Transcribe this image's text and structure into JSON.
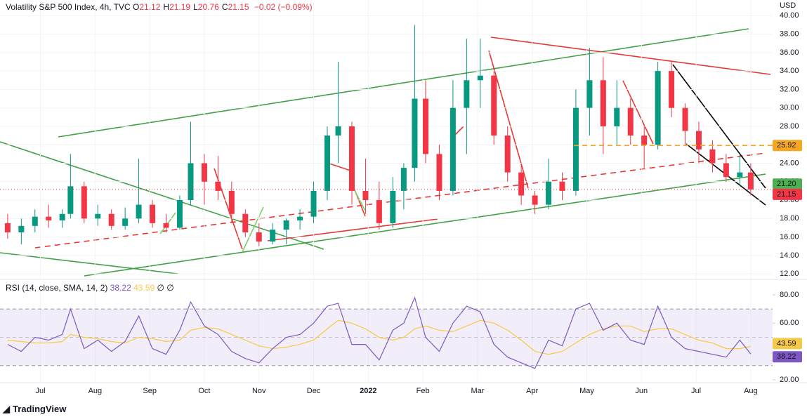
{
  "header": {
    "symbol": "Volatility S&P 500 Index, 4h, TVC",
    "ohlc": [
      {
        "label": "O",
        "value": 21.12
      },
      {
        "label": "H",
        "value": 21.19
      },
      {
        "label": "L",
        "value": 20.76
      },
      {
        "label": "C",
        "value": 21.15
      }
    ],
    "change": "−0.02 (−0.09%)"
  },
  "chart_data": [
    {
      "type": "candlestick",
      "currency": "USD",
      "up_color": "#089981",
      "down_color": "#f23645",
      "x": [
        -0.6,
        -0.35,
        -0.1,
        0.15,
        0.4,
        0.55,
        0.8,
        1.05,
        1.3,
        1.55,
        1.8,
        2.05,
        2.3,
        2.55,
        2.75,
        3.0,
        3.25,
        3.5,
        3.75,
        4.0,
        4.25,
        4.5,
        4.75,
        5.0,
        5.25,
        5.45,
        5.7,
        5.95,
        6.2,
        6.45,
        6.65,
        6.85,
        7.05,
        7.3,
        7.55,
        7.8,
        8.05,
        8.3,
        8.55,
        8.8,
        9.05,
        9.3,
        9.55,
        9.8,
        10.05,
        10.3,
        10.55,
        10.8,
        11.05,
        11.3,
        11.55,
        11.8,
        12.05,
        12.3,
        12.55,
        12.8,
        13.0
      ],
      "open": [
        17.5,
        16.5,
        17.2,
        18.2,
        17.8,
        18.5,
        21.5,
        18,
        18.5,
        17.2,
        18,
        19.5,
        17.5,
        17,
        20,
        24,
        22,
        21,
        18.5,
        16.5,
        15.5,
        16.8,
        17.8,
        18.2,
        21,
        27,
        28,
        21,
        20,
        17.5,
        21,
        23.5,
        31,
        25,
        21,
        30,
        33,
        33.5,
        27,
        23,
        20.5,
        19.5,
        22,
        21,
        30,
        33,
        28,
        30,
        27,
        26,
        34,
        30,
        27.5,
        25.5,
        24,
        22.5,
        23
      ],
      "high": [
        18.5,
        18,
        19,
        19.5,
        19,
        25,
        22,
        19.5,
        19,
        19.2,
        24.5,
        20,
        18.5,
        20.5,
        28.5,
        25,
        24.8,
        22,
        19,
        17.5,
        17.5,
        18,
        19,
        22,
        28,
        35,
        28.5,
        24.5,
        22,
        22.5,
        24,
        39,
        33,
        26,
        33,
        37.5,
        37.5,
        34,
        28,
        24,
        21,
        24.5,
        23,
        32,
        36.5,
        35.5,
        33,
        31,
        28,
        35,
        35,
        30.5,
        28.5,
        26.5,
        25,
        25,
        24
      ],
      "low": [
        15.8,
        15.2,
        16.5,
        17,
        17,
        18,
        17.5,
        17.2,
        16.8,
        16.8,
        17.5,
        17,
        16.5,
        16.8,
        19.5,
        19.5,
        20,
        17.5,
        16,
        15,
        15.2,
        15.2,
        16.8,
        17.5,
        20,
        24,
        19.5,
        18.5,
        16.8,
        17,
        19,
        22,
        24,
        20,
        20.5,
        25,
        30,
        26,
        22,
        19.5,
        18.5,
        19,
        20,
        20.5,
        27,
        25,
        26,
        26,
        23.5,
        25.5,
        29,
        26,
        24,
        23,
        22,
        21.5,
        20.5
      ],
      "close": [
        16.5,
        17.2,
        18.2,
        17.8,
        18.5,
        21.5,
        18,
        18.5,
        17.2,
        18,
        19.5,
        17.5,
        17,
        20,
        24,
        22,
        21,
        18.5,
        16.5,
        15.5,
        16.8,
        17.8,
        18.2,
        21,
        27,
        28,
        21,
        20,
        17.5,
        21,
        23.5,
        31,
        25,
        21,
        30,
        33,
        33.5,
        27,
        23,
        20.5,
        19.5,
        22,
        21,
        30,
        33,
        28,
        30,
        27,
        26,
        34,
        30,
        27.5,
        25.5,
        24,
        22.5,
        23,
        21.15
      ],
      "xlim": [
        -0.74,
        13.4
      ],
      "xticks": [
        {
          "value": 0,
          "label": "Jul"
        },
        {
          "value": 1,
          "label": "Aug"
        },
        {
          "value": 2,
          "label": "Sep"
        },
        {
          "value": 3,
          "label": "Oct"
        },
        {
          "value": 4,
          "label": "Nov"
        },
        {
          "value": 5,
          "label": "Dec"
        },
        {
          "value": 6,
          "label": "2022"
        },
        {
          "value": 7,
          "label": "Feb"
        },
        {
          "value": 8,
          "label": "Mar"
        },
        {
          "value": 9,
          "label": "Apr"
        },
        {
          "value": 10,
          "label": "May"
        },
        {
          "value": 11,
          "label": "Jun"
        },
        {
          "value": 12,
          "label": "Jul"
        },
        {
          "value": 13,
          "label": "Aug"
        }
      ],
      "ylim": [
        11.4,
        41.7
      ],
      "yticks": [
        {
          "value": 12,
          "label": "12.00"
        },
        {
          "value": 14,
          "label": "14.00"
        },
        {
          "value": 16,
          "label": "16.00"
        },
        {
          "value": 18,
          "label": "18.00"
        },
        {
          "value": 20,
          "label": "20.00"
        },
        {
          "value": 22,
          "label": "22.00"
        },
        {
          "value": 24,
          "label": "24.00"
        },
        {
          "value": 26,
          "label": "26.00"
        },
        {
          "value": 28,
          "label": "28.00"
        },
        {
          "value": 30,
          "label": "30.00"
        },
        {
          "value": 32,
          "label": "32.00"
        },
        {
          "value": 34,
          "label": "34.00"
        },
        {
          "value": 36,
          "label": "36.00"
        },
        {
          "value": 38,
          "label": "38.00"
        },
        {
          "value": 40,
          "label": "40.00"
        }
      ],
      "price_lines": [
        {
          "value": 25.92,
          "label": "25.92",
          "color": "#f5a623"
        },
        {
          "value": 21.2,
          "label": "21.20",
          "color": "#4caf50"
        },
        {
          "value": 21.15,
          "label": "21.15",
          "color": "#f23645"
        }
      ]
    },
    {
      "type": "line",
      "title": "RSI (14, close, SMA, 14, 2)",
      "extras": "∅ ∅",
      "series": [
        {
          "color": "#7e57c2",
          "values": [
            45,
            40,
            50,
            48,
            52,
            70,
            42,
            48,
            40,
            47,
            65,
            42,
            38,
            55,
            75,
            58,
            52,
            40,
            35,
            32,
            42,
            50,
            52,
            60,
            72,
            74,
            45,
            45,
            34,
            55,
            60,
            78,
            50,
            40,
            60,
            72,
            68,
            45,
            36,
            32,
            28,
            48,
            44,
            70,
            74,
            55,
            60,
            48,
            45,
            72,
            50,
            42,
            40,
            38,
            36,
            48,
            38.22
          ],
          "value_labels": "38.22"
        },
        {
          "color": "#f7c948",
          "values": [
            48,
            47,
            46,
            46,
            47,
            52,
            50,
            49,
            47,
            46,
            50,
            49,
            47,
            48,
            55,
            57,
            56,
            52,
            48,
            44,
            42,
            43,
            45,
            48,
            56,
            62,
            60,
            56,
            50,
            48,
            50,
            56,
            58,
            55,
            54,
            58,
            62,
            60,
            55,
            48,
            40,
            38,
            40,
            46,
            52,
            56,
            58,
            58,
            54,
            56,
            56,
            52,
            48,
            46,
            42,
            42,
            43.59
          ],
          "value_labels": "43.59"
        }
      ],
      "ylim": [
        18,
        90.9
      ],
      "yticks": [
        {
          "value": 20,
          "label": "20.00"
        },
        {
          "value": 60,
          "label": "60.00"
        },
        {
          "value": 80,
          "label": "80.00"
        }
      ],
      "bands": [
        70,
        50,
        30
      ]
    }
  ],
  "footer": {
    "brand": "TradingView"
  }
}
